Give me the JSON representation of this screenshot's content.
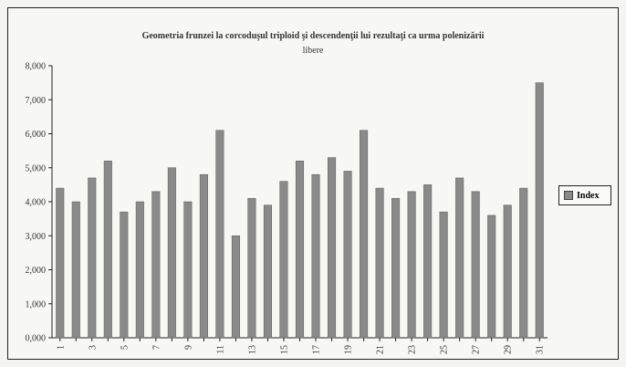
{
  "chart_data": {
    "type": "bar",
    "title": "Geometria frunzei la corcoduşul triploid şi descendenţii lui rezultaţi ca urma polenizării",
    "subtitle": "libere",
    "categories": [
      "1",
      "2",
      "3",
      "4",
      "5",
      "6",
      "7",
      "8",
      "9",
      "10",
      "11",
      "12",
      "13",
      "14",
      "15",
      "16",
      "17",
      "18",
      "19",
      "20",
      "21",
      "22",
      "23",
      "24",
      "25",
      "26",
      "27",
      "28",
      "29",
      "30",
      "31"
    ],
    "x_tick_labels": [
      "1",
      "3",
      "5",
      "7",
      "9",
      "11",
      "13",
      "15",
      "17",
      "19",
      "21",
      "23",
      "25",
      "27",
      "29",
      "31"
    ],
    "series": [
      {
        "name": "Index",
        "values": [
          4.4,
          4.0,
          4.7,
          5.2,
          3.7,
          4.0,
          4.3,
          5.0,
          4.0,
          4.8,
          6.1,
          3.0,
          4.1,
          3.9,
          4.6,
          5.2,
          4.8,
          5.3,
          4.9,
          6.1,
          4.4,
          4.1,
          4.3,
          4.5,
          3.7,
          4.7,
          4.3,
          3.6,
          3.9,
          4.4,
          7.5
        ]
      }
    ],
    "y_tick_labels": [
      "0,000",
      "1,000",
      "2,000",
      "3,000",
      "4,000",
      "5,000",
      "6,000",
      "7,000",
      "8,000"
    ],
    "ylim": [
      0,
      8
    ],
    "legend_position": "right",
    "grid": false,
    "bar_color": "#8a8a8a"
  }
}
